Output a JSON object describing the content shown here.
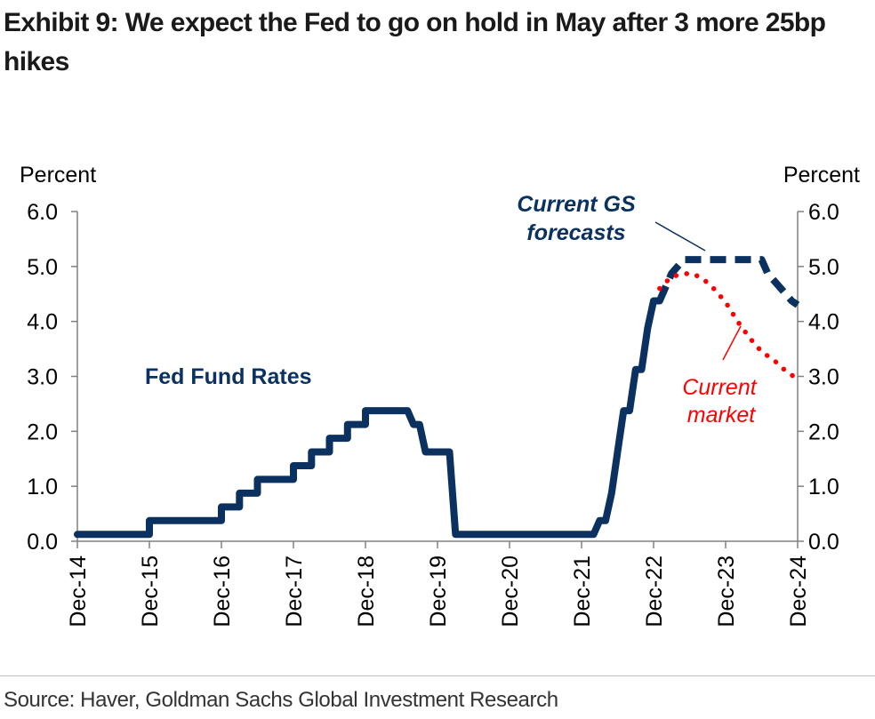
{
  "title": "Exhibit 9: We expect the Fed to go on hold in May after 3 more 25bp hikes",
  "source": "Source: Haver, Goldman Sachs Global Investment Research",
  "colors": {
    "navy": "#0b3160",
    "red": "#ff0000",
    "axis": "#808080"
  },
  "chart_data": {
    "type": "line",
    "y_label_left": "Percent",
    "y_label_right": "Percent",
    "ylim": [
      0.0,
      6.0
    ],
    "y_ticks": [
      "0.0",
      "1.0",
      "2.0",
      "3.0",
      "4.0",
      "5.0",
      "6.0"
    ],
    "x_ticks": [
      "Dec-14",
      "Dec-15",
      "Dec-16",
      "Dec-17",
      "Dec-18",
      "Dec-19",
      "Dec-20",
      "Dec-21",
      "Dec-22",
      "Dec-23",
      "Dec-24"
    ],
    "xlim": [
      "2014-12",
      "2024-12"
    ],
    "grid": false,
    "annotations": {
      "fed_funds": "Fed Fund Rates",
      "gs_forecast_line1": "Current GS",
      "gs_forecast_line2": "forecasts",
      "market_line1": "Current",
      "market_line2": "market"
    },
    "series": [
      {
        "style": "solid",
        "color": "#0b3160",
        "points": [
          [
            "2014-12",
            0.125
          ],
          [
            "2015-12",
            0.125
          ],
          [
            "2015-12",
            0.375
          ],
          [
            "2016-12",
            0.375
          ],
          [
            "2016-12",
            0.625
          ],
          [
            "2017-03",
            0.625
          ],
          [
            "2017-03",
            0.875
          ],
          [
            "2017-06",
            0.875
          ],
          [
            "2017-06",
            1.125
          ],
          [
            "2017-12",
            1.125
          ],
          [
            "2017-12",
            1.375
          ],
          [
            "2018-03",
            1.375
          ],
          [
            "2018-03",
            1.625
          ],
          [
            "2018-06",
            1.625
          ],
          [
            "2018-06",
            1.875
          ],
          [
            "2018-09",
            1.875
          ],
          [
            "2018-09",
            2.125
          ],
          [
            "2018-12",
            2.125
          ],
          [
            "2018-12",
            2.375
          ],
          [
            "2019-07",
            2.375
          ],
          [
            "2019-08",
            2.125
          ],
          [
            "2019-09",
            2.125
          ],
          [
            "2019-10",
            1.625
          ],
          [
            "2020-02",
            1.625
          ],
          [
            "2020-03",
            0.125
          ],
          [
            "2022-02",
            0.125
          ],
          [
            "2022-03",
            0.375
          ],
          [
            "2022-04",
            0.375
          ],
          [
            "2022-05",
            0.875
          ],
          [
            "2022-06",
            1.625
          ],
          [
            "2022-07",
            2.375
          ],
          [
            "2022-08",
            2.375
          ],
          [
            "2022-09",
            3.125
          ],
          [
            "2022-10",
            3.125
          ],
          [
            "2022-11",
            3.875
          ],
          [
            "2022-12",
            4.375
          ],
          [
            "2023-01",
            4.375
          ]
        ]
      },
      {
        "name": "Current GS forecasts",
        "style": "dashed",
        "color": "#0b3160",
        "points": [
          [
            "2023-01",
            4.375
          ],
          [
            "2023-02",
            4.625
          ],
          [
            "2023-03",
            4.875
          ],
          [
            "2023-05",
            5.125
          ],
          [
            "2024-06",
            5.125
          ],
          [
            "2024-07",
            4.875
          ],
          [
            "2024-09",
            4.625
          ],
          [
            "2024-11",
            4.375
          ],
          [
            "2024-12",
            4.3
          ]
        ]
      },
      {
        "name": "Current market",
        "style": "dotted",
        "color": "#ff0000",
        "points": [
          [
            "2023-01",
            4.6
          ],
          [
            "2023-03",
            4.82
          ],
          [
            "2023-06",
            4.88
          ],
          [
            "2023-08",
            4.8
          ],
          [
            "2023-10",
            4.6
          ],
          [
            "2023-12",
            4.35
          ],
          [
            "2024-02",
            4.0
          ],
          [
            "2024-04",
            3.7
          ],
          [
            "2024-06",
            3.45
          ],
          [
            "2024-08",
            3.3
          ],
          [
            "2024-10",
            3.1
          ],
          [
            "2024-12",
            2.95
          ]
        ]
      }
    ]
  }
}
